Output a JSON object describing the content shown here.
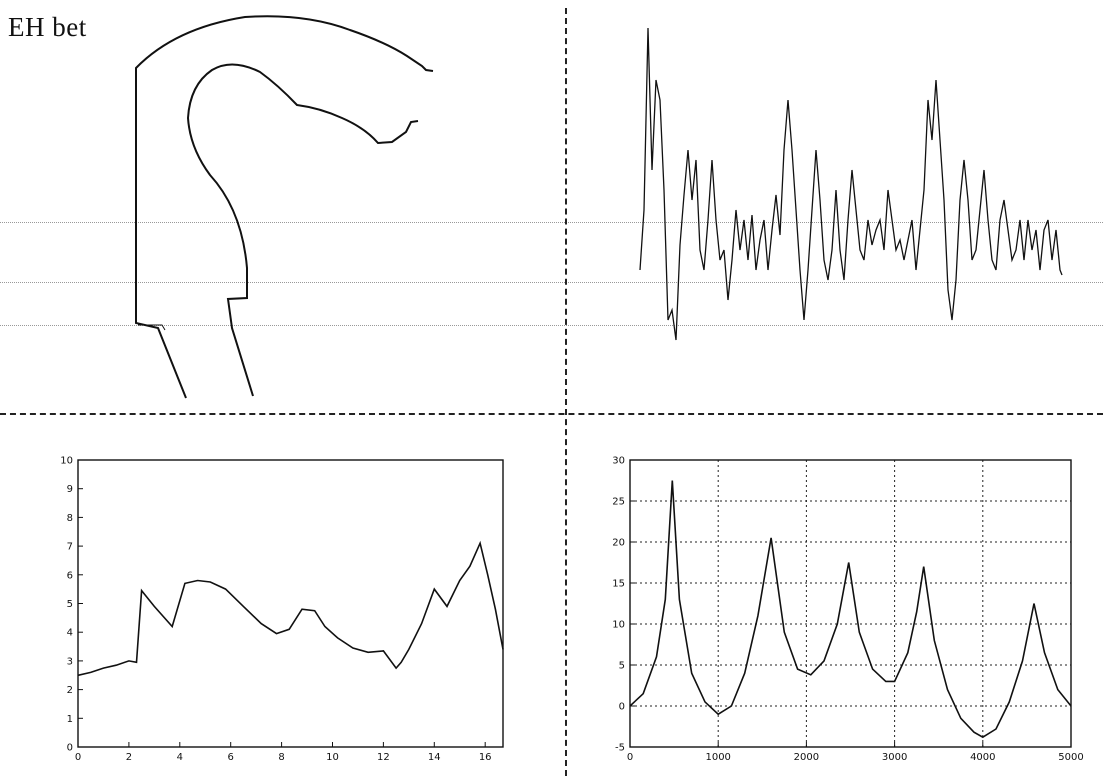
{
  "page": {
    "title": "EH bet"
  },
  "chart_data": [
    {
      "type": "line",
      "title": "",
      "xlabel": "",
      "ylabel": "",
      "xlim": [
        0,
        16.7
      ],
      "ylim": [
        0,
        10
      ],
      "xticks": [
        0,
        2,
        4,
        6,
        8,
        10,
        12,
        14,
        16
      ],
      "yticks": [
        0,
        1,
        2,
        3,
        4,
        5,
        6,
        7,
        8,
        9,
        10
      ],
      "grid": false,
      "x": [
        0,
        0.5,
        1,
        1.5,
        2,
        2.3,
        2.5,
        3,
        3.7,
        4.2,
        4.7,
        5.2,
        5.8,
        6.5,
        7.2,
        7.8,
        8.3,
        8.8,
        9.3,
        9.7,
        10.2,
        10.8,
        11.4,
        12,
        12.5,
        12.7,
        13,
        13.5,
        14,
        14.5,
        15,
        15.4,
        15.8,
        16.1,
        16.4,
        16.7
      ],
      "y": [
        2.5,
        2.6,
        2.75,
        2.85,
        3.0,
        2.95,
        5.45,
        4.9,
        4.2,
        5.7,
        5.8,
        5.75,
        5.5,
        4.9,
        4.3,
        3.95,
        4.1,
        4.8,
        4.75,
        4.2,
        3.8,
        3.45,
        3.3,
        3.35,
        2.75,
        2.95,
        3.4,
        4.3,
        5.5,
        4.9,
        5.8,
        6.3,
        7.1,
        6.0,
        4.8,
        3.4
      ]
    },
    {
      "type": "line",
      "title": "",
      "xlabel": "",
      "ylabel": "",
      "xlim": [
        0,
        5000
      ],
      "ylim": [
        -5,
        30
      ],
      "xticks": [
        0,
        1000,
        2000,
        3000,
        4000,
        5000
      ],
      "yticks": [
        -5,
        0,
        5,
        10,
        15,
        20,
        25,
        30
      ],
      "grid": true,
      "x": [
        0,
        150,
        300,
        400,
        480,
        560,
        700,
        850,
        1000,
        1150,
        1300,
        1450,
        1600,
        1750,
        1900,
        2050,
        2200,
        2350,
        2480,
        2600,
        2750,
        2900,
        3000,
        3150,
        3250,
        3330,
        3450,
        3600,
        3750,
        3900,
        4000,
        4150,
        4300,
        4450,
        4580,
        4700,
        4850,
        5000
      ],
      "y": [
        0,
        1.5,
        6,
        13,
        27.5,
        13,
        4,
        0.5,
        -1,
        0,
        4,
        11,
        20.5,
        9,
        4.5,
        3.8,
        5.5,
        10,
        17.5,
        9,
        4.5,
        3,
        3,
        6.5,
        11.5,
        17,
        8,
        2,
        -1.5,
        -3.2,
        -3.8,
        -2.8,
        0.5,
        5.5,
        12.5,
        6.5,
        2,
        0
      ]
    }
  ]
}
